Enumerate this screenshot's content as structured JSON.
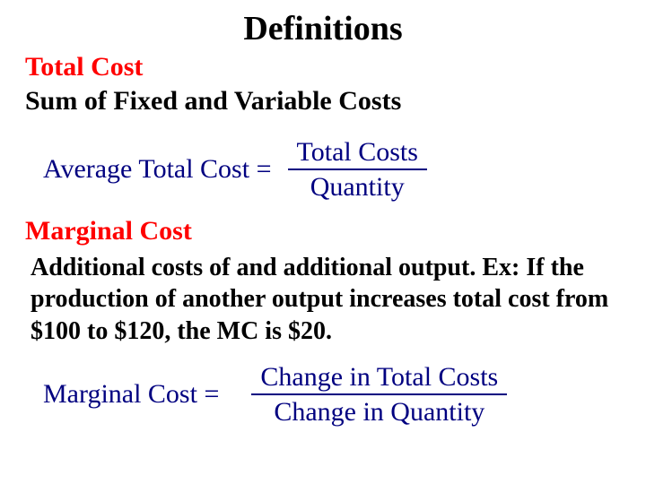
{
  "colors": {
    "red": "#ff0000",
    "navy": "#000080",
    "black": "#000000",
    "background": "#ffffff"
  },
  "title": "Definitions",
  "total_cost": {
    "heading": "Total Cost",
    "definition": "Sum of Fixed and Variable Costs"
  },
  "atc": {
    "label": "Average Total Cost =",
    "numerator": "Total Costs",
    "denominator": "Quantity"
  },
  "marginal": {
    "heading": "Marginal Cost",
    "definition": "Additional costs of and additional output. Ex: If the production of another output increases total cost from $100 to $120, the MC is $20.",
    "label": "Marginal Cost =",
    "numerator": "Change in Total Costs",
    "denominator": "Change in Quantity"
  }
}
